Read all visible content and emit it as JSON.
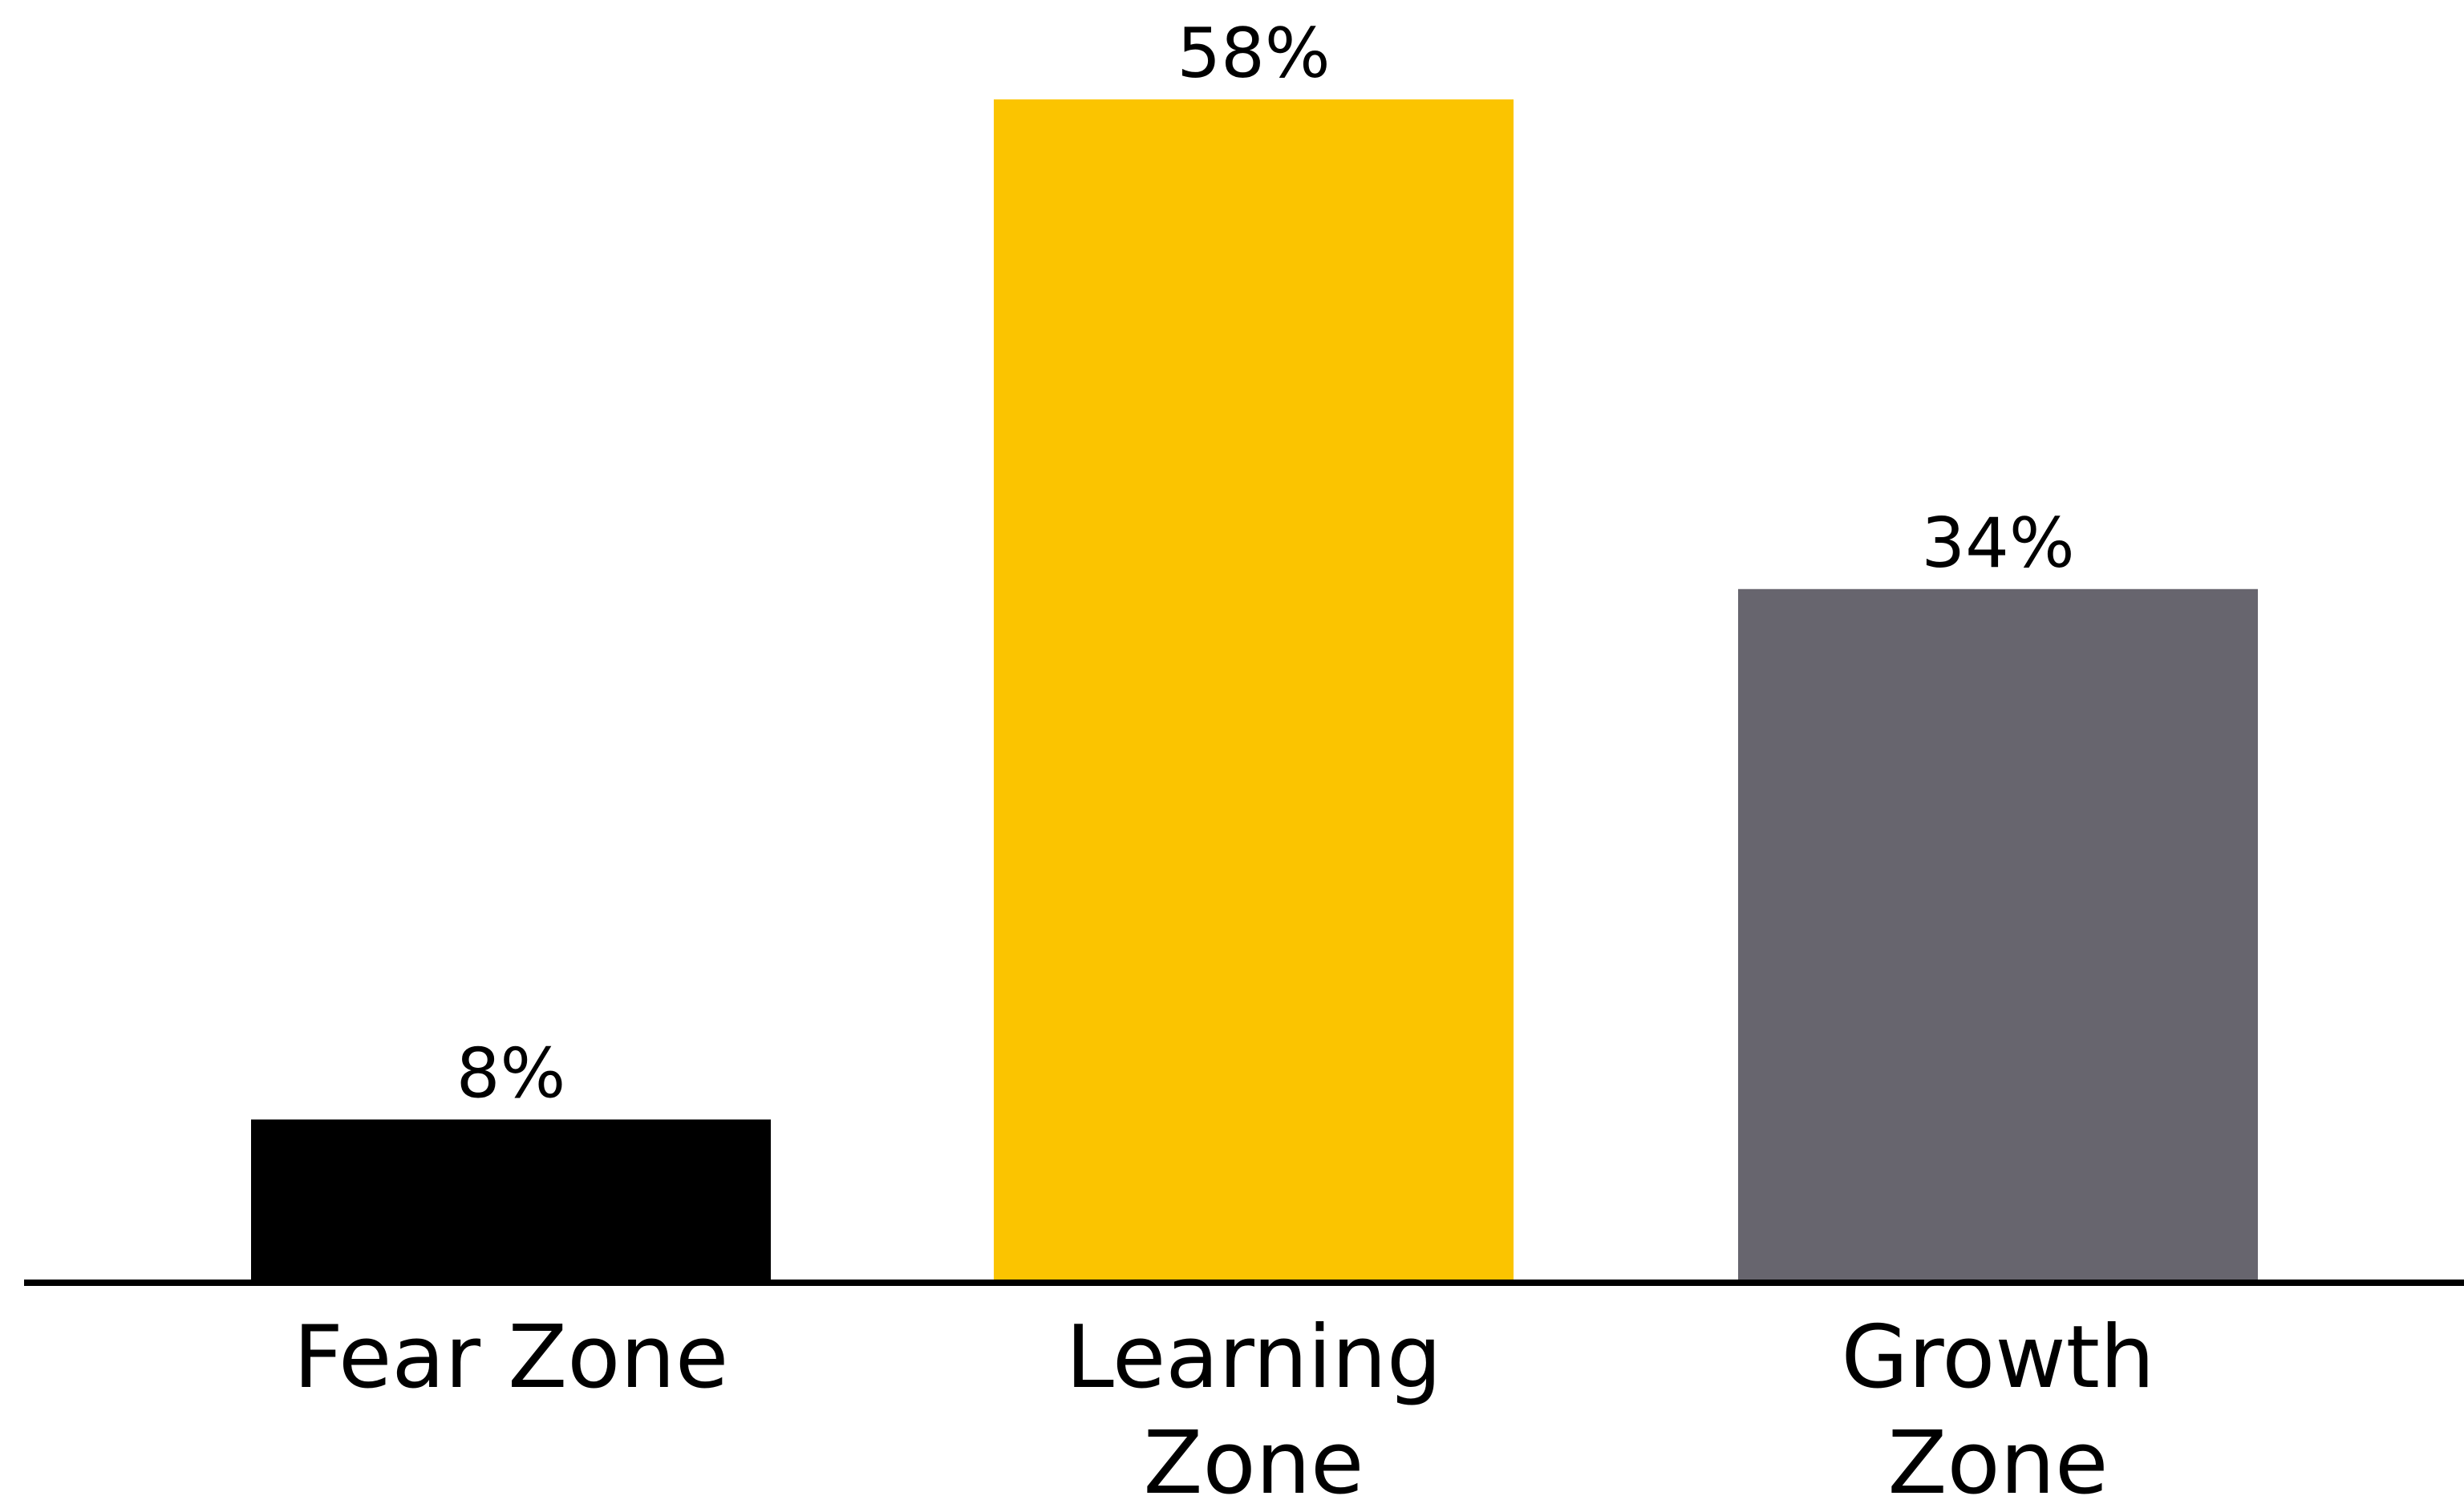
{
  "chart_data": {
    "type": "bar",
    "categories": [
      [
        "Fear Zone"
      ],
      [
        "Learning",
        "Zone"
      ],
      [
        "Growth",
        "Zone"
      ]
    ],
    "values": [
      8,
      58,
      34
    ],
    "value_labels": [
      "8%",
      "58%",
      "34%"
    ],
    "colors": [
      "#000000",
      "#FBC400",
      "#67656E"
    ],
    "unit": "%",
    "title": "",
    "xlabel": "",
    "ylabel": "",
    "ylim": [
      0,
      58
    ],
    "grid": false,
    "legend": "none"
  }
}
